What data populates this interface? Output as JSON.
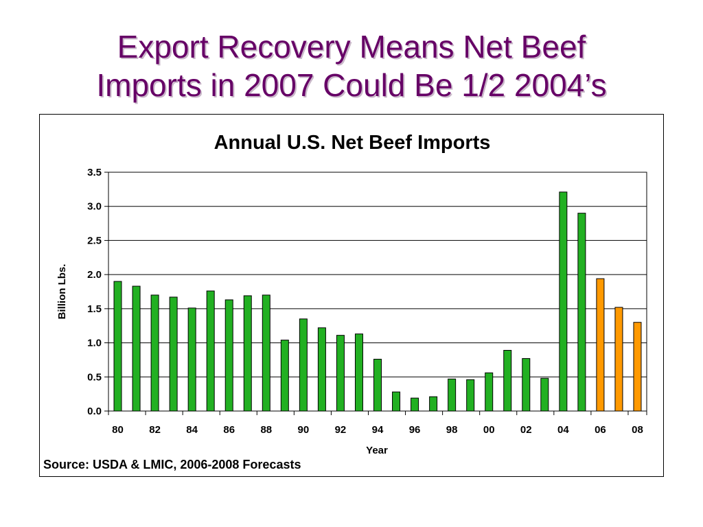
{
  "slide": {
    "title_line1": "Export Recovery Means Net Beef",
    "title_line2": "Imports in 2007 Could Be 1/2 2004’s"
  },
  "chart_data": {
    "type": "bar",
    "title": "Annual U.S. Net Beef Imports",
    "xlabel": "Year",
    "ylabel": "Billion Lbs.",
    "ylim": [
      0,
      3.5
    ],
    "y_ticks": [
      "0.0",
      "0.5",
      "1.0",
      "1.5",
      "2.0",
      "2.5",
      "3.0",
      "3.5"
    ],
    "grid": true,
    "categories": [
      "80",
      "81",
      "82",
      "83",
      "84",
      "85",
      "86",
      "87",
      "88",
      "89",
      "90",
      "91",
      "92",
      "93",
      "94",
      "95",
      "96",
      "97",
      "98",
      "99",
      "00",
      "01",
      "02",
      "03",
      "04",
      "05",
      "06",
      "07",
      "08"
    ],
    "x_tick_labels": [
      "80",
      "",
      "82",
      "",
      "84",
      "",
      "86",
      "",
      "88",
      "",
      "90",
      "",
      "92",
      "",
      "94",
      "",
      "96",
      "",
      "98",
      "",
      "00",
      "",
      "02",
      "",
      "04",
      "",
      "06",
      "",
      "08"
    ],
    "values": [
      1.9,
      1.83,
      1.7,
      1.67,
      1.51,
      1.76,
      1.63,
      1.69,
      1.7,
      1.04,
      1.35,
      1.22,
      1.11,
      1.13,
      0.76,
      0.28,
      0.19,
      0.21,
      0.47,
      0.46,
      0.56,
      0.89,
      0.77,
      0.48,
      3.21,
      2.9,
      1.94,
      1.52,
      1.3
    ],
    "bar_kind": [
      "actual",
      "actual",
      "actual",
      "actual",
      "actual",
      "actual",
      "actual",
      "actual",
      "actual",
      "actual",
      "actual",
      "actual",
      "actual",
      "actual",
      "actual",
      "actual",
      "actual",
      "actual",
      "actual",
      "actual",
      "actual",
      "actual",
      "actual",
      "actual",
      "actual",
      "actual",
      "forecast",
      "forecast",
      "forecast"
    ],
    "colors": {
      "actual": "#22b022",
      "forecast": "#ff9900",
      "bar_stroke": "#000000",
      "grid": "#000000"
    }
  },
  "source_note": "Source: USDA & LMIC, 2006-2008 Forecasts"
}
